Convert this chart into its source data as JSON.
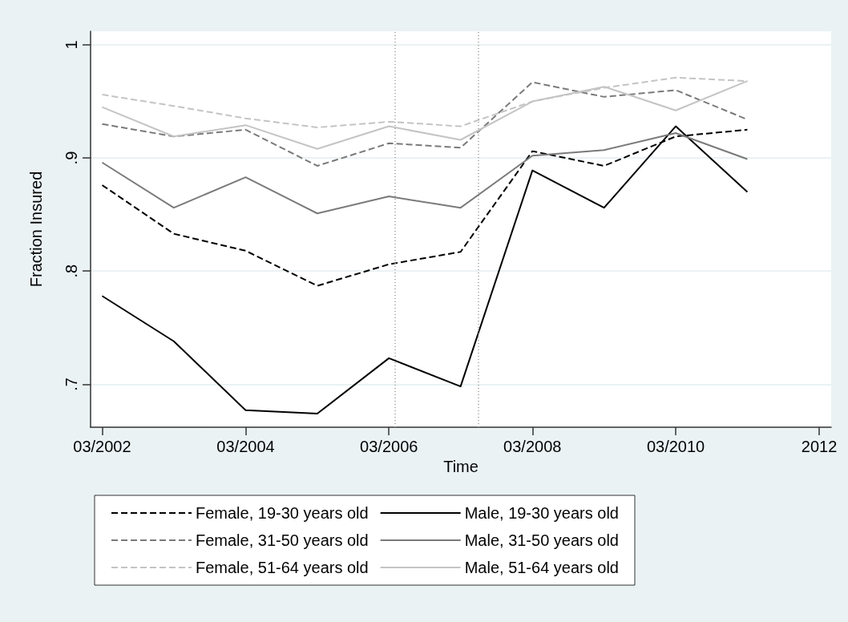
{
  "chart_data": {
    "type": "line",
    "xlabel": "Time",
    "ylabel": "Fraction Insured",
    "x": [
      "2002-03",
      "2003-03",
      "2004-03",
      "2005-03",
      "2006-03",
      "2007-03",
      "2008-03",
      "2009-03",
      "2010-03",
      "2011-03"
    ],
    "xlim": [
      "2002-01",
      "2012-05"
    ],
    "xticks": [
      {
        "value": "2002-03",
        "label": "03/2002"
      },
      {
        "value": "2004-03",
        "label": "03/2004"
      },
      {
        "value": "2006-03",
        "label": "03/2006"
      },
      {
        "value": "2008-03",
        "label": "03/2008"
      },
      {
        "value": "2010-03",
        "label": "03/2010"
      },
      {
        "value": "2012-03",
        "label": "2012"
      }
    ],
    "ylim": [
      0.662,
      1.012
    ],
    "yticks": [
      {
        "value": 0.7,
        "label": ".7"
      },
      {
        "value": 0.8,
        "label": ".8"
      },
      {
        "value": 0.9,
        "label": ".9"
      },
      1
    ],
    "grid": "y",
    "legend": "bottom",
    "marker": "none",
    "ref_lines": [
      {
        "axis": "x",
        "value": "2006-04",
        "color": "#999999",
        "line_style": "dotted"
      },
      {
        "axis": "x",
        "value": "2007-06",
        "color": "#999999",
        "line_style": "dotted"
      }
    ],
    "series": [
      {
        "name": "Female, 19-30 years old",
        "color": "#000000",
        "line_style": "dashed",
        "values": [
          0.876,
          0.833,
          0.818,
          0.787,
          0.806,
          0.817,
          0.906,
          0.893,
          0.919,
          0.925
        ]
      },
      {
        "name": "Male, 19-30 years old",
        "color": "#000000",
        "line_style": "solid",
        "values": [
          0.778,
          0.738,
          0.677,
          0.674,
          0.723,
          0.698,
          0.889,
          0.856,
          0.928,
          0.87
        ]
      },
      {
        "name": "Female, 31-50 years old",
        "color": "#7a7a7a",
        "line_style": "dashed",
        "values": [
          0.93,
          0.919,
          0.925,
          0.893,
          0.913,
          0.909,
          0.967,
          0.954,
          0.96,
          0.934
        ]
      },
      {
        "name": "Male, 31-50 years old",
        "color": "#7a7a7a",
        "line_style": "solid",
        "values": [
          0.896,
          0.856,
          0.883,
          0.851,
          0.866,
          0.856,
          0.902,
          0.907,
          0.922,
          0.899
        ]
      },
      {
        "name": "Female, 51-64 years old",
        "color": "#c4c4c4",
        "line_style": "dashed",
        "values": [
          0.956,
          0.946,
          0.935,
          0.927,
          0.932,
          0.928,
          0.95,
          0.962,
          0.971,
          0.968
        ]
      },
      {
        "name": "Male, 51-64 years old",
        "color": "#c4c4c4",
        "line_style": "solid",
        "values": [
          0.945,
          0.919,
          0.929,
          0.908,
          0.928,
          0.916,
          0.95,
          0.963,
          0.942,
          0.968
        ]
      }
    ]
  }
}
